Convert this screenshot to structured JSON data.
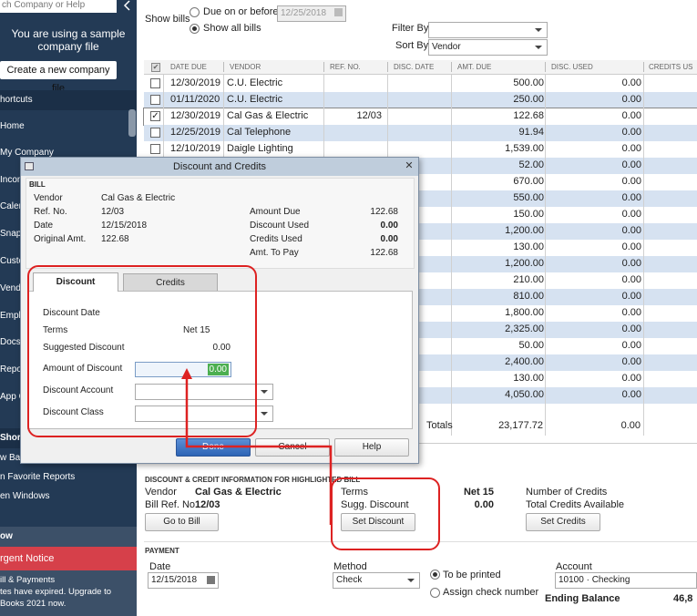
{
  "sidebar": {
    "search_text": "ch Company or Help",
    "sample_notice": "You are using a sample company file",
    "create_button": "Create a new company file",
    "shortcuts_header": "hortcuts",
    "items": [
      "Home",
      "My Company",
      "Income",
      "Calendar",
      "Snapshots",
      "Customers",
      "Vendors",
      "Employees",
      "Docs",
      "Reports",
      "App Center"
    ],
    "items_visible": [
      "Home",
      "My Company",
      "Incon",
      "Caler",
      "Snap",
      "Custo",
      "Vendo",
      "Emplo",
      "Docs",
      "Repo",
      "App C"
    ],
    "shortcuts_label": "Shor",
    "lower_items": [
      "w Bal",
      "n Favorite Reports",
      "en Windows"
    ],
    "now_label": "ow",
    "urgent_label": "rgent Notice",
    "urgent_lines": [
      "ill & Payments",
      "tes have expired. Upgrade to",
      "Books 2021 now."
    ]
  },
  "filters": {
    "show_bills_label": "Show bills",
    "due_on_before_label": "Due on or before",
    "due_date": "12/25/2018",
    "show_all_label": "Show all bills",
    "filter_by_label": "Filter By",
    "filter_by_value": "",
    "sort_by_label": "Sort By",
    "sort_by_value": "Vendor"
  },
  "grid": {
    "headers": [
      "DATE DUE",
      "VENDOR",
      "REF. NO.",
      "DISC. DATE",
      "AMT. DUE",
      "DISC. USED",
      "CREDITS US"
    ],
    "rows": [
      {
        "checked": false,
        "date": "12/30/2019",
        "vendor": "C.U. Electric",
        "ref": "",
        "amt": "500.00",
        "disc": "0.00"
      },
      {
        "checked": false,
        "date": "01/11/2020",
        "vendor": "C.U. Electric",
        "ref": "",
        "amt": "250.00",
        "disc": "0.00"
      },
      {
        "checked": true,
        "date": "12/30/2019",
        "vendor": "Cal Gas & Electric",
        "ref": "12/03",
        "amt": "122.68",
        "disc": "0.00"
      },
      {
        "checked": false,
        "date": "12/25/2019",
        "vendor": "Cal Telephone",
        "ref": "",
        "amt": "91.94",
        "disc": "0.00"
      },
      {
        "checked": false,
        "date": "12/10/2019",
        "vendor": "Daigle Lighting",
        "ref": "",
        "amt": "1,539.00",
        "disc": "0.00"
      },
      {
        "checked": false,
        "date": "",
        "vendor": "",
        "ref": "",
        "amt": "52.00",
        "disc": "0.00"
      },
      {
        "checked": false,
        "date": "",
        "vendor": "",
        "ref": "",
        "amt": "670.00",
        "disc": "0.00"
      },
      {
        "checked": false,
        "date": "",
        "vendor": "",
        "ref": "",
        "amt": "550.00",
        "disc": "0.00"
      },
      {
        "checked": false,
        "date": "",
        "vendor": "",
        "ref": "",
        "amt": "150.00",
        "disc": "0.00"
      },
      {
        "checked": false,
        "date": "",
        "vendor": "",
        "ref": "",
        "amt": "1,200.00",
        "disc": "0.00"
      },
      {
        "checked": false,
        "date": "",
        "vendor": "",
        "ref": "",
        "amt": "130.00",
        "disc": "0.00"
      },
      {
        "checked": false,
        "date": "",
        "vendor": "",
        "ref": "",
        "amt": "1,200.00",
        "disc": "0.00"
      },
      {
        "checked": false,
        "date": "",
        "vendor": "",
        "ref": "",
        "amt": "210.00",
        "disc": "0.00"
      },
      {
        "checked": false,
        "date": "",
        "vendor": "",
        "ref": "",
        "amt": "810.00",
        "disc": "0.00"
      },
      {
        "checked": false,
        "date": "",
        "vendor": "",
        "ref": "",
        "amt": "1,800.00",
        "disc": "0.00"
      },
      {
        "checked": false,
        "date": "",
        "vendor": "",
        "ref": "",
        "amt": "2,325.00",
        "disc": "0.00"
      },
      {
        "checked": false,
        "date": "",
        "vendor": "",
        "ref": "",
        "amt": "50.00",
        "disc": "0.00"
      },
      {
        "checked": false,
        "date": "",
        "vendor": "",
        "ref": "",
        "amt": "2,400.00",
        "disc": "0.00"
      },
      {
        "checked": false,
        "date": "",
        "vendor": "",
        "ref": "",
        "amt": "130.00",
        "disc": "0.00"
      },
      {
        "checked": false,
        "date": "",
        "vendor": "",
        "ref": "",
        "amt": "4,050.00",
        "disc": "0.00"
      }
    ],
    "totals_label": "Totals",
    "total_amt": "23,177.72",
    "total_disc": "0.00"
  },
  "dialog": {
    "title": "Discount and Credits",
    "bill_label": "BILL",
    "vendor_label": "Vendor",
    "vendor": "Cal Gas & Electric",
    "ref_label": "Ref. No.",
    "ref": "12/03",
    "date_label": "Date",
    "date": "12/15/2018",
    "orig_label": "Original Amt.",
    "orig": "122.68",
    "amount_due_label": "Amount Due",
    "amount_due": "122.68",
    "discount_used_label": "Discount Used",
    "discount_used": "0.00",
    "credits_used_label": "Credits Used",
    "credits_used": "0.00",
    "amt_to_pay_label": "Amt. To Pay",
    "amt_to_pay": "122.68",
    "tab_discount": "Discount",
    "tab_credits": "Credits",
    "discount_date_label": "Discount Date",
    "terms_label": "Terms",
    "terms": "Net 15",
    "sugg_discount_label": "Suggested Discount",
    "sugg_discount": "0.00",
    "amount_discount_label": "Amount of Discount",
    "amount_discount": "0.00",
    "discount_account_label": "Discount Account",
    "discount_class_label": "Discount Class",
    "done_button": "Done",
    "cancel_button": "Cancel",
    "help_button": "Help"
  },
  "bottom": {
    "section_title": "DISCOUNT & CREDIT INFORMATION FOR HIGHLIGHTED BILL",
    "vendor_label": "Vendor",
    "vendor": "Cal Gas & Electric",
    "bill_ref_label": "Bill Ref. No.",
    "bill_ref": "12/03",
    "go_to_bill": "Go to Bill",
    "terms_label": "Terms",
    "terms": "Net 15",
    "sugg_label": "Sugg. Discount",
    "sugg": "0.00",
    "set_discount": "Set Discount",
    "num_credits_label": "Number of Credits",
    "total_credits_label": "Total Credits Available",
    "set_credits": "Set Credits",
    "payment_title": "PAYMENT",
    "date_label": "Date",
    "date": "12/15/2018",
    "method_label": "Method",
    "method": "Check",
    "to_be_printed": "To be printed",
    "assign_check": "Assign check number",
    "account_label": "Account",
    "account": "10100 · Checking",
    "ending_balance_label": "Ending Balance",
    "ending_balance": "46,8"
  },
  "colors": {
    "sidebar": "#233a55",
    "band": "#d6e2f1",
    "annotation": "#dd2222",
    "urgent": "#d6404a"
  }
}
